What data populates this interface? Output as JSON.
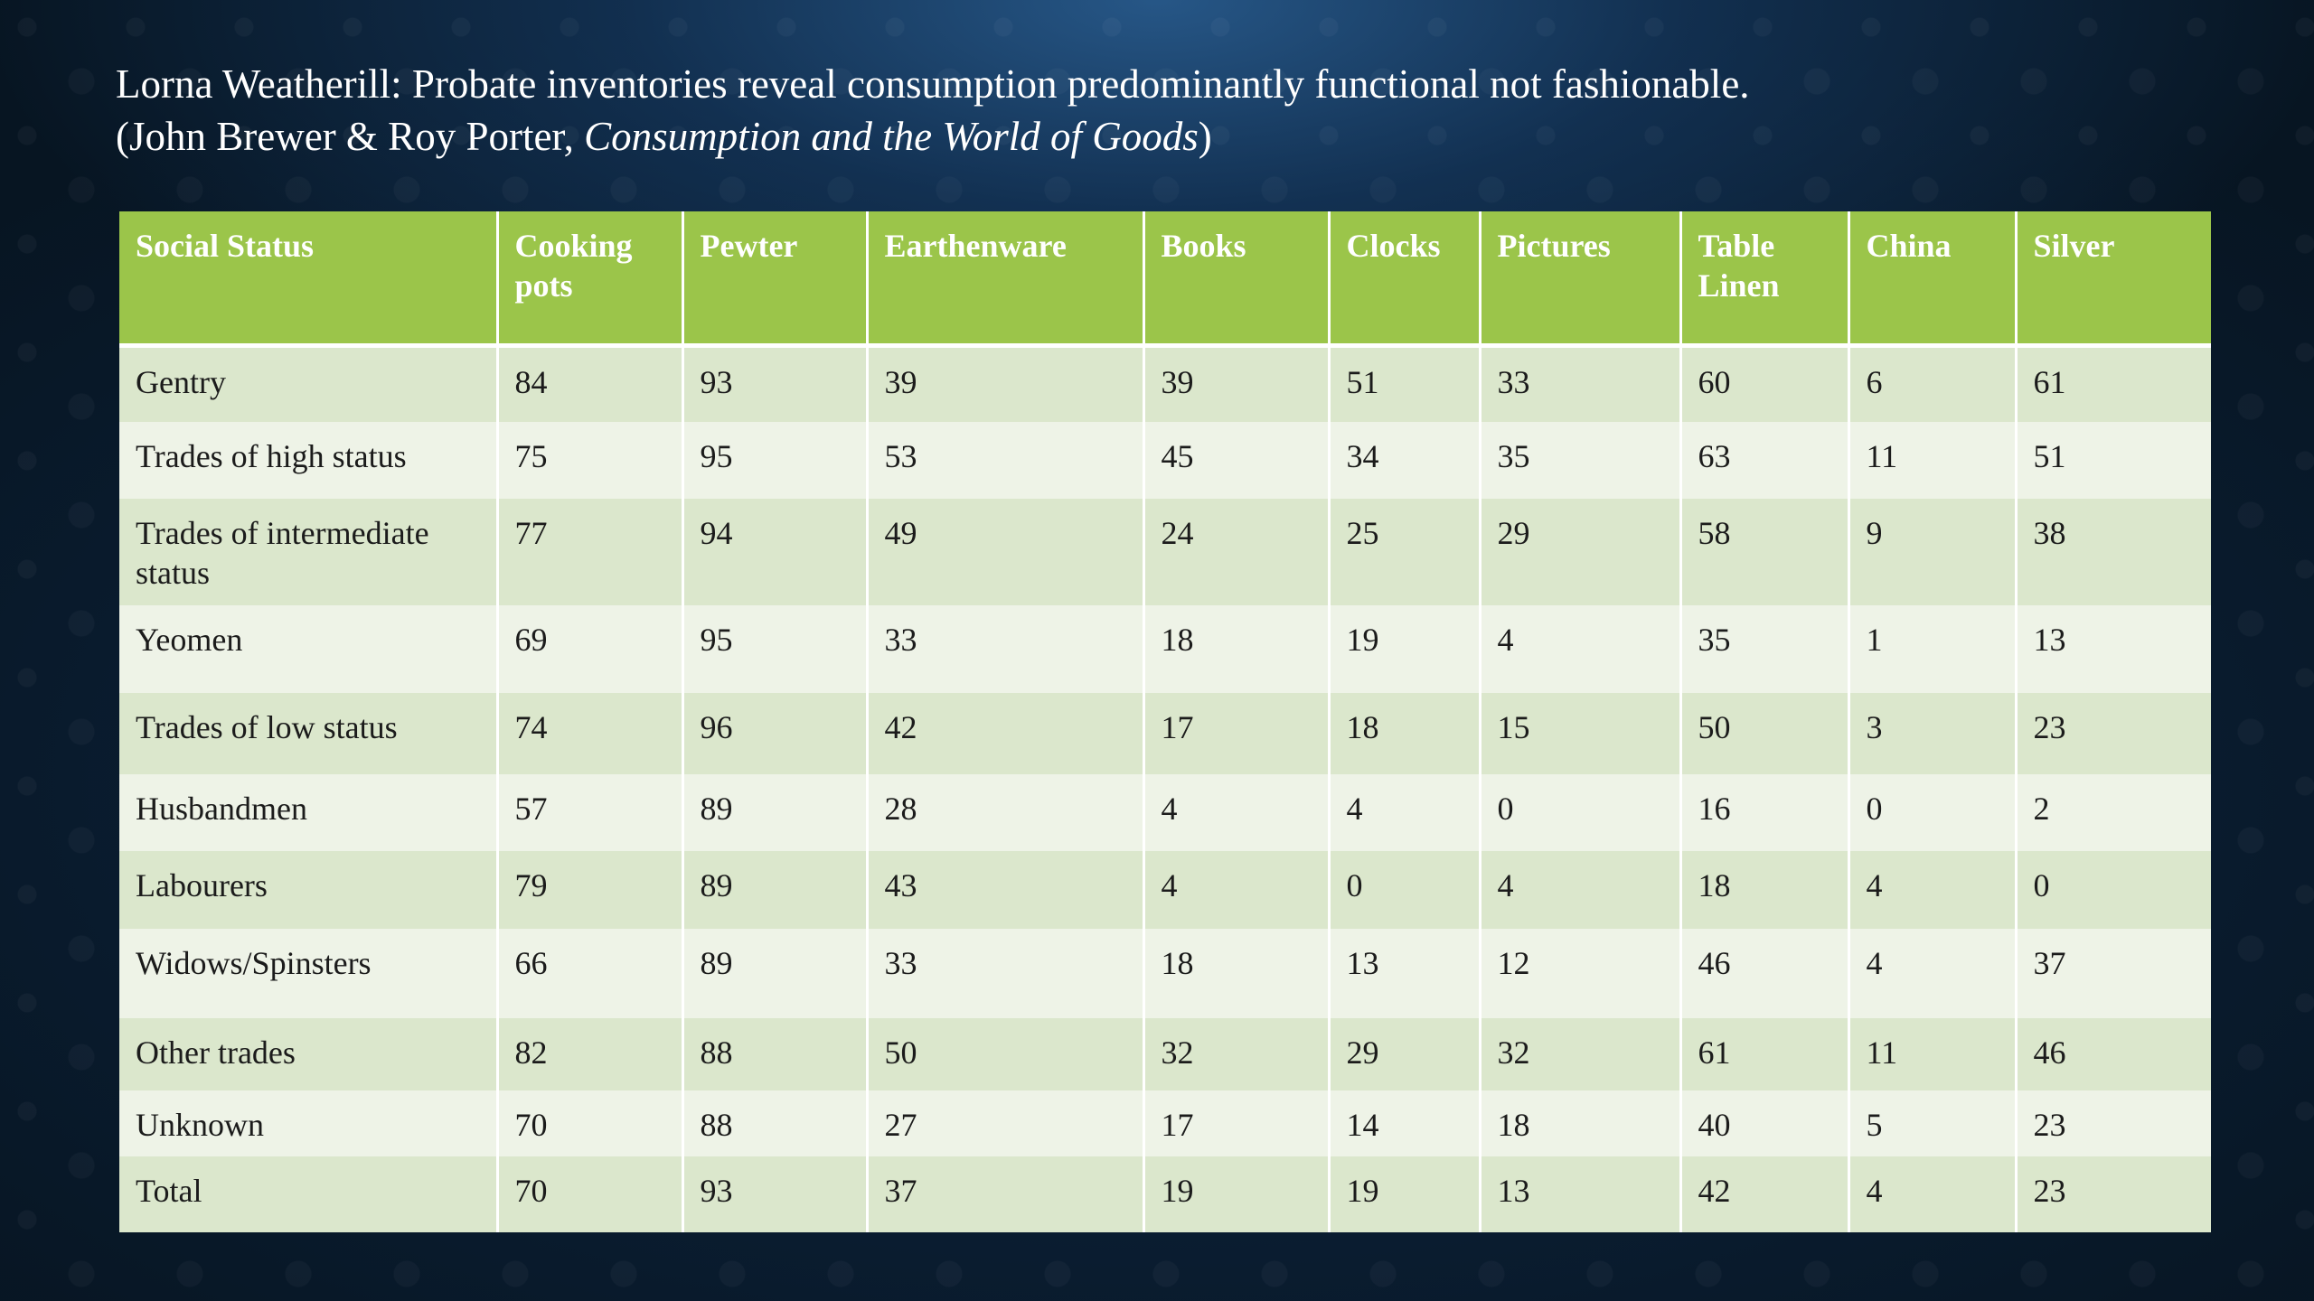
{
  "title": {
    "line1": "Lorna Weatherill: Probate inventories reveal consumption predominantly functional not fashionable.",
    "line2_open": "(John Brewer & Roy Porter, ",
    "line2_italic": "Consumption and the World of Goods",
    "line2_close": ")"
  },
  "table": {
    "headers": [
      "Social Status",
      "Cooking pots",
      "Pewter",
      "Earthenware",
      "Books",
      "Clocks",
      "Pictures",
      "Table Linen",
      "China",
      "Silver"
    ],
    "rows": [
      [
        "Gentry",
        "84",
        "93",
        "39",
        "39",
        "51",
        "33",
        "60",
        "6",
        "61"
      ],
      [
        "Trades of high status",
        "75",
        "95",
        "53",
        "45",
        "34",
        "35",
        "63",
        "11",
        "51"
      ],
      [
        "Trades of intermediate status",
        "77",
        "94",
        "49",
        "24",
        "25",
        "29",
        "58",
        "9",
        "38"
      ],
      [
        "Yeomen",
        "69",
        "95",
        "33",
        "18",
        "19",
        "4",
        "35",
        "1",
        "13"
      ],
      [
        "Trades of low status",
        "74",
        "96",
        "42",
        "17",
        "18",
        "15",
        "50",
        "3",
        "23"
      ],
      [
        "Husbandmen",
        "57",
        "89",
        "28",
        "4",
        "4",
        "0",
        "16",
        "0",
        "2"
      ],
      [
        "Labourers",
        "79",
        "89",
        "43",
        "4",
        "0",
        "4",
        "18",
        "4",
        "0"
      ],
      [
        "Widows/Spinsters",
        "66",
        "89",
        "33",
        "18",
        "13",
        "12",
        "46",
        "4",
        "37"
      ],
      [
        "Other trades",
        "82",
        "88",
        "50",
        "32",
        "29",
        "32",
        "61",
        "11",
        "46"
      ],
      [
        "Unknown",
        "70",
        "88",
        "27",
        "17",
        "14",
        "18",
        "40",
        "5",
        "23"
      ],
      [
        "Total",
        "70",
        "93",
        "37",
        "19",
        "19",
        "13",
        "42",
        "4",
        "23"
      ]
    ]
  },
  "colors": {
    "header_green": "#9bc54a",
    "row_band_dark": "#dbe7cc",
    "row_band_light": "#eef3e7",
    "background_navy": "#0e2a45"
  }
}
